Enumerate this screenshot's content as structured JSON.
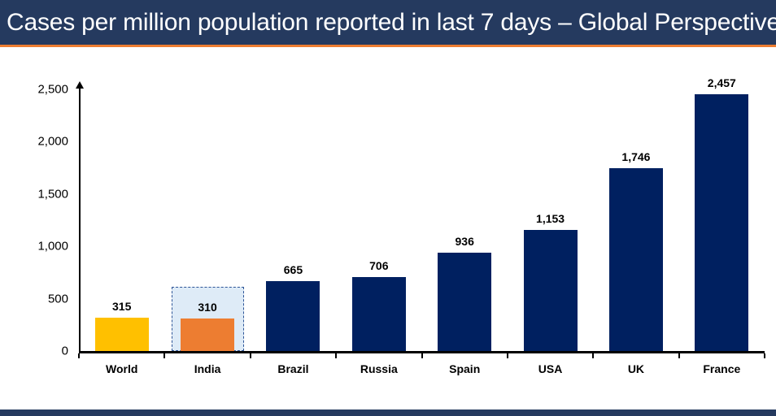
{
  "header": {
    "title": "Cases per million population reported in last 7 days – Global Perspective",
    "bg_color": "#253A5F",
    "accent_color": "#ED7D31",
    "text_color": "#FFFFFF"
  },
  "footer": {
    "bg_color": "#253A5F"
  },
  "chart_data": {
    "type": "bar",
    "title": "Cases per million population reported in last 7 days – Global Perspective",
    "categories": [
      "World",
      "India",
      "Brazil",
      "Russia",
      "Spain",
      "USA",
      "UK",
      "France"
    ],
    "values": [
      315,
      310,
      665,
      706,
      936,
      1153,
      1746,
      2457
    ],
    "value_labels": [
      "315",
      "310",
      "665",
      "706",
      "936",
      "1,153",
      "1,746",
      "2,457"
    ],
    "bar_colors": [
      "#FFC000",
      "#ED7D31",
      "#002060",
      "#002060",
      "#002060",
      "#002060",
      "#002060",
      "#002060"
    ],
    "default_bar_color": "#002060",
    "highlighted_category": "India",
    "highlight": {
      "fill": "#DEEBF7",
      "border_color": "#2E5597",
      "border_style": "dashed",
      "top_value": 610
    },
    "xlabel": "",
    "ylabel": "",
    "ylim": [
      0,
      2500
    ],
    "ytick_values": [
      0,
      500,
      1000,
      1500,
      2000,
      2500
    ],
    "ytick_labels": [
      "0",
      "500",
      "1,000",
      "1,500",
      "2,000",
      "2,500"
    ],
    "grid": false,
    "legend": false,
    "axis_arrow": "y-top"
  }
}
